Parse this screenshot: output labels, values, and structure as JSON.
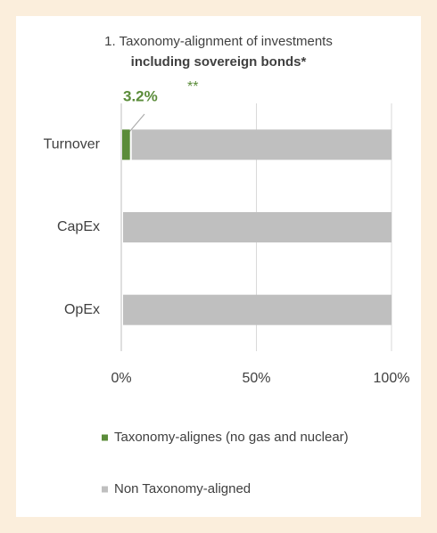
{
  "chart_data": {
    "type": "stacked_barh",
    "title": "1. Taxonomy-alignment of investments",
    "subtitle": "including sovereign bonds*",
    "annotation": "**",
    "categories": [
      "Turnover",
      "CapEx",
      "OpEx"
    ],
    "series": [
      {
        "name": "Taxonomy-alignes (no gas and nuclear)",
        "color": "#5b8c3a",
        "values": [
          3.2,
          0,
          0
        ],
        "value_labels": [
          "3.2%",
          null,
          null
        ]
      },
      {
        "name": "Non Taxonomy-aligned",
        "color": "#bfbfbf",
        "values": [
          96.8,
          100,
          100
        ]
      }
    ],
    "xlim": [
      0,
      100
    ],
    "xticks": [
      {
        "value": 0,
        "label": "0%"
      },
      {
        "value": 50,
        "label": "50%"
      },
      {
        "value": 100,
        "label": "100%"
      }
    ],
    "grid": true,
    "legend": "bottom"
  }
}
